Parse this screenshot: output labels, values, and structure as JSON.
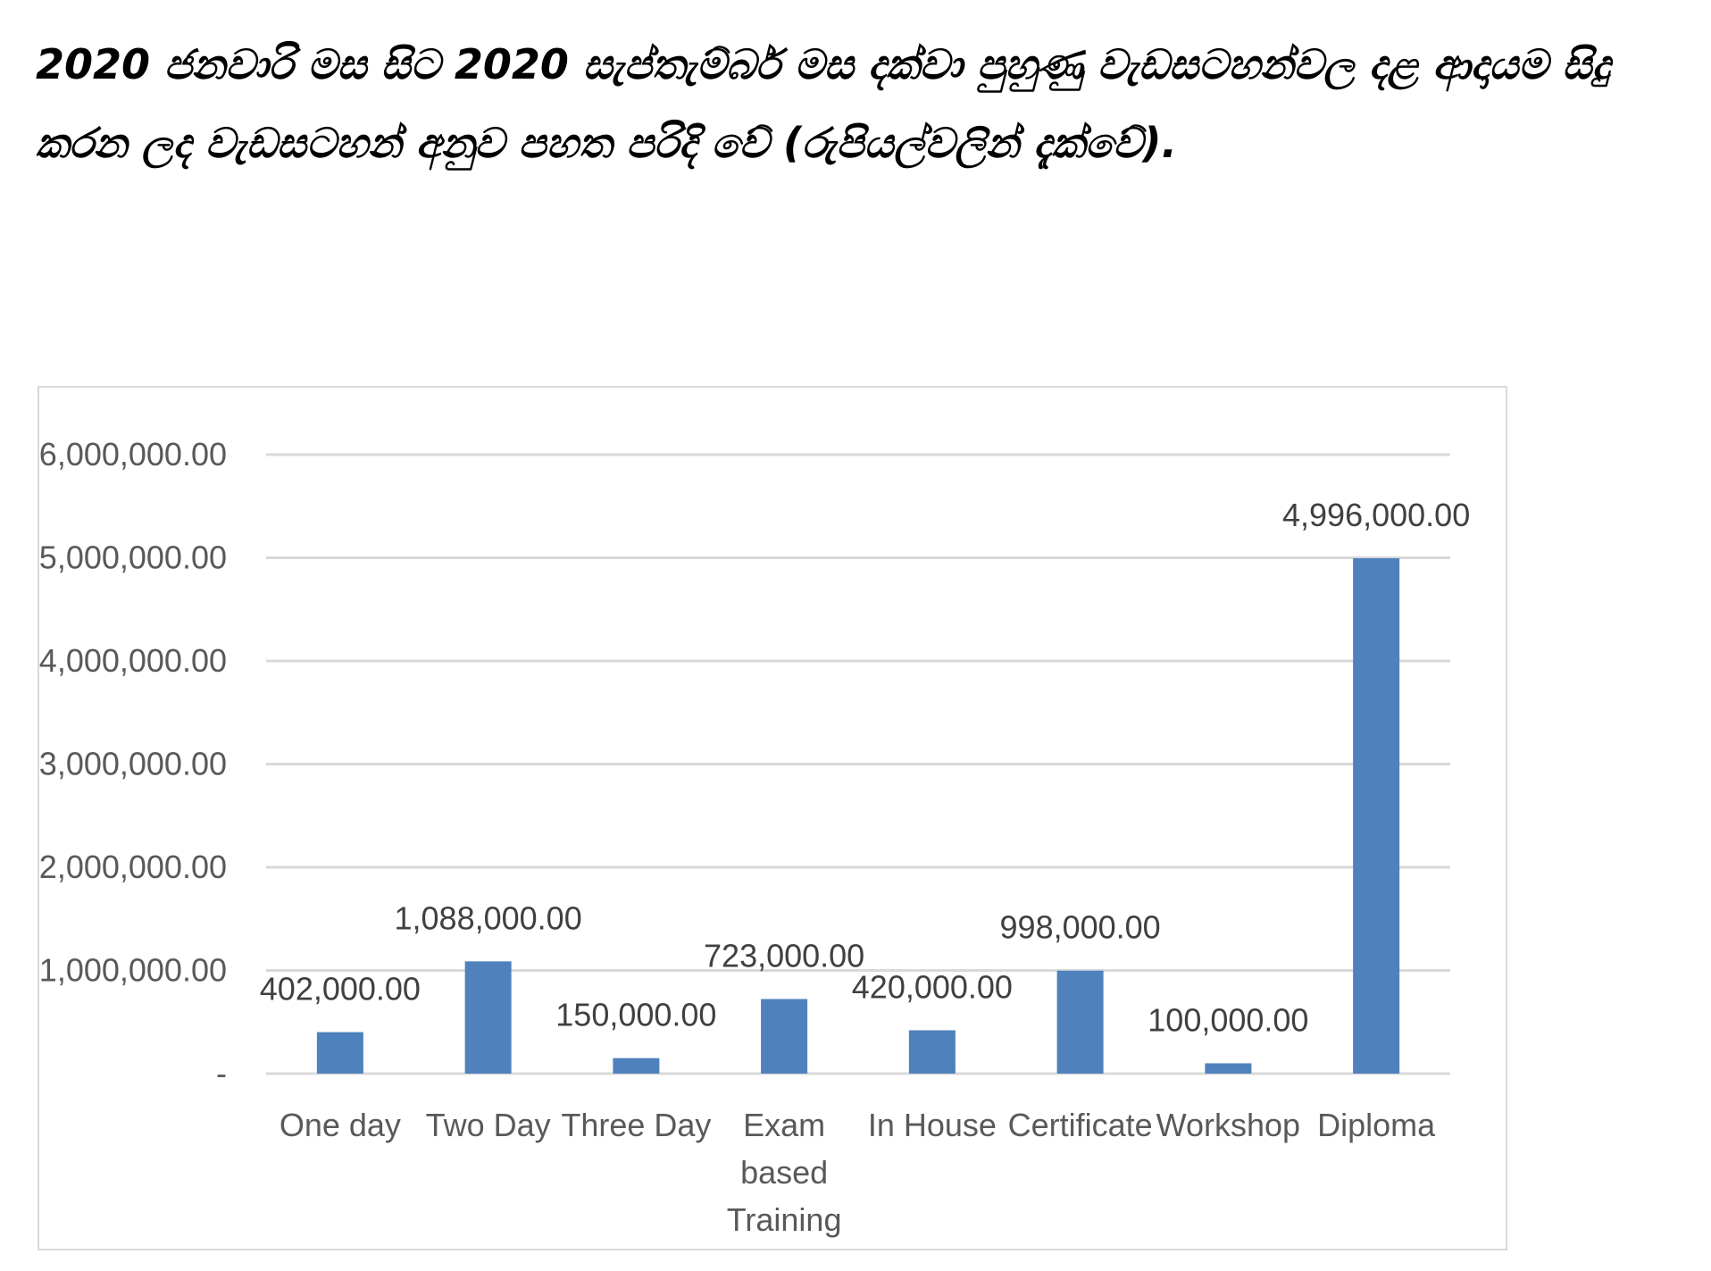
{
  "heading": "2020 ජනවාරි මස සිට 2020 සැප්තැම්බර් මස දක්වා පුහුණු වැඩසටහන්වල දළ ආදායම සිදු කරන ලද වැඩසටහන් අනුව පහත පරිදි වේ (රුපියල්වලින් දැක්වේ).",
  "chart_data": {
    "type": "bar",
    "categories": [
      "One day",
      "Two Day",
      "Three Day",
      "Exam based Training",
      "In House",
      "Certificate",
      "Workshop",
      "Diploma"
    ],
    "category_lines": [
      [
        "One day"
      ],
      [
        "Two Day"
      ],
      [
        "Three Day"
      ],
      [
        "Exam",
        "based",
        "Training"
      ],
      [
        "In House"
      ],
      [
        "Certificate"
      ],
      [
        "Workshop"
      ],
      [
        "Diploma"
      ]
    ],
    "values": [
      402000,
      1088000,
      150000,
      723000,
      420000,
      998000,
      100000,
      4996000
    ],
    "data_labels": [
      "402,000.00",
      "1,088,000.00",
      "150,000.00",
      "723,000.00",
      "420,000.00",
      "998,000.00",
      "100,000.00",
      "4,996,000.00"
    ],
    "ylim": [
      0,
      6000000
    ],
    "yticks": [
      0,
      1000000,
      2000000,
      3000000,
      4000000,
      5000000,
      6000000
    ],
    "ytick_labels": [
      "-",
      "1,000,000.00",
      "2,000,000.00",
      "3,000,000.00",
      "4,000,000.00",
      "5,000,000.00",
      "6,000,000.00"
    ],
    "grid": true,
    "legend": "none",
    "bar_color": "#4f81bd",
    "grid_color": "#d9d9d9"
  }
}
